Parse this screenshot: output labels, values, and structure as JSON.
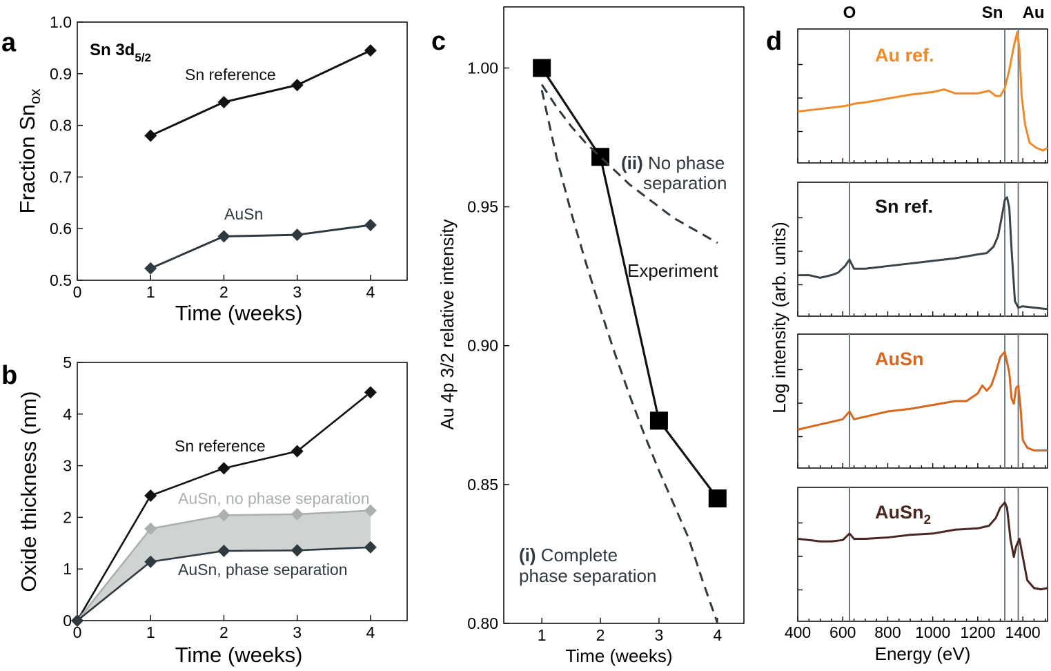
{
  "panel_labels": {
    "a": "a",
    "b": "b",
    "c": "c",
    "d": "d"
  },
  "chart_data": [
    {
      "panel": "a",
      "type": "line",
      "title_main": "Sn 3d",
      "title_sub": "5/2",
      "xlabel": "Time (weeks)",
      "ylabel_main": "Fraction Sn",
      "ylabel_sub": "ox",
      "xlim": [
        0,
        4.5
      ],
      "ylim": [
        0.5,
        1.0
      ],
      "xticks": [
        0,
        1,
        2,
        3,
        4
      ],
      "xtick_labels": [
        "0",
        "1",
        "2",
        "3",
        "4"
      ],
      "yticks": [
        0.5,
        0.6,
        0.7,
        0.8,
        0.9,
        1.0
      ],
      "ytick_labels": [
        "0.5",
        "0.6",
        "0.7",
        "0.8",
        "0.9",
        "1.0"
      ],
      "series": [
        {
          "name": "Sn reference",
          "color": "#111111",
          "x": [
            1,
            2,
            3,
            4
          ],
          "y": [
            0.78,
            0.845,
            0.878,
            0.945
          ]
        },
        {
          "name": "AuSn",
          "color": "#2f3a40",
          "x": [
            1,
            2,
            3,
            4
          ],
          "y": [
            0.523,
            0.585,
            0.588,
            0.607
          ]
        }
      ]
    },
    {
      "panel": "b",
      "type": "line",
      "xlabel": "Time (weeks)",
      "ylabel": "Oxide thickness (nm)",
      "xlim": [
        0,
        4.5
      ],
      "ylim": [
        0,
        5
      ],
      "xticks": [
        0,
        1,
        2,
        3,
        4
      ],
      "xtick_labels": [
        "0",
        "1",
        "2",
        "3",
        "4"
      ],
      "yticks": [
        0,
        1,
        2,
        3,
        4,
        5
      ],
      "ytick_labels": [
        "0",
        "1",
        "2",
        "3",
        "4",
        "5"
      ],
      "band_color": "#cfd4d2",
      "series": [
        {
          "name": "Sn reference",
          "color": "#111111",
          "x": [
            0,
            1,
            2,
            3,
            4
          ],
          "y": [
            0,
            2.42,
            2.95,
            3.28,
            4.42
          ]
        },
        {
          "name": "AuSn, no phase separation",
          "color": "#a9b0ae",
          "x": [
            0,
            1,
            2,
            3,
            4
          ],
          "y": [
            0,
            1.78,
            2.04,
            2.06,
            2.13
          ]
        },
        {
          "name": "AuSn, phase separation",
          "color": "#2f3a40",
          "x": [
            0,
            1,
            2,
            3,
            4
          ],
          "y": [
            0,
            1.14,
            1.35,
            1.36,
            1.42
          ]
        }
      ]
    },
    {
      "panel": "c",
      "type": "line",
      "xlabel": "Time (weeks)",
      "ylabel": "Au 4p 3/2 relative intensity",
      "xlim": [
        0.35,
        4.45
      ],
      "ylim": [
        0.8,
        1.022
      ],
      "xticks": [
        1,
        2,
        3,
        4
      ],
      "xtick_labels": [
        "1",
        "2",
        "3",
        "4"
      ],
      "yticks": [
        0.8,
        0.85,
        0.9,
        0.95,
        1.0
      ],
      "ytick_labels": [
        "0.80",
        "0.85",
        "0.90",
        "0.95",
        "1.00"
      ],
      "series": [
        {
          "name": "Experiment",
          "color": "#111111",
          "x": [
            1,
            2,
            3,
            4
          ],
          "y": [
            1.0,
            0.968,
            0.873,
            0.845
          ]
        },
        {
          "name": "(ii) No phase separation",
          "color": "#2f3a40",
          "dashed": true,
          "x": [
            1,
            1.25,
            1.5,
            1.75,
            2,
            2.25,
            2.5,
            2.75,
            3,
            3.25,
            3.5,
            3.75,
            4
          ],
          "y": [
            0.994,
            0.986,
            0.979,
            0.973,
            0.968,
            0.963,
            0.958,
            0.954,
            0.95,
            0.946,
            0.943,
            0.94,
            0.937
          ]
        },
        {
          "name": "(i) Complete phase separation",
          "color": "#2f3a40",
          "dashed": true,
          "x": [
            1,
            1.25,
            1.5,
            1.75,
            2,
            2.25,
            2.5,
            2.75,
            3,
            3.25,
            3.5,
            3.75,
            4
          ],
          "y": [
            0.992,
            0.968,
            0.948,
            0.93,
            0.913,
            0.897,
            0.882,
            0.868,
            0.855,
            0.843,
            0.831,
            0.815,
            0.8
          ]
        }
      ],
      "annotations": {
        "experiment": "Experiment",
        "ii_tag": "(ii)",
        "ii_line1": " No phase",
        "ii_line2": "separation",
        "i_tag": "(i)",
        "i_line1": " Complete",
        "i_line2": "phase separation"
      }
    },
    {
      "panel": "d",
      "type": "line",
      "xlabel": "Energy (eV)",
      "ylabel": "Log intensity (arb. units)",
      "xlim": [
        400,
        1510
      ],
      "xticks": [
        400,
        600,
        800,
        1000,
        1200,
        1400
      ],
      "xtick_labels": [
        "400",
        "600",
        "800",
        "1000",
        "1200",
        "1400"
      ],
      "reference_lines": [
        {
          "label": "O",
          "x": 630
        },
        {
          "label": "Sn",
          "x": 1320
        },
        {
          "label": "Au",
          "x": 1380
        }
      ],
      "series": [
        {
          "name": "Au ref.",
          "color": "#ef8a2b",
          "x": [
            400,
            450,
            500,
            550,
            600,
            630,
            650,
            700,
            800,
            900,
            1000,
            1050,
            1100,
            1200,
            1250,
            1280,
            1300,
            1320,
            1340,
            1360,
            1375,
            1385,
            1395,
            1410,
            1430,
            1460,
            1490,
            1510
          ],
          "y": [
            0.38,
            0.39,
            0.4,
            0.41,
            0.42,
            0.43,
            0.44,
            0.45,
            0.48,
            0.51,
            0.53,
            0.55,
            0.52,
            0.52,
            0.54,
            0.5,
            0.5,
            0.56,
            0.7,
            0.88,
            0.99,
            0.86,
            0.5,
            0.28,
            0.14,
            0.1,
            0.08,
            0.1
          ]
        },
        {
          "name": "Sn ref.",
          "color": "#3a4448",
          "x": [
            400,
            450,
            500,
            550,
            580,
            610,
            630,
            650,
            700,
            800,
            900,
            1000,
            1100,
            1200,
            1240,
            1270,
            1290,
            1310,
            1320,
            1330,
            1340,
            1350,
            1365,
            1380,
            1400,
            1450,
            1500,
            1510
          ],
          "y": [
            0.3,
            0.3,
            0.28,
            0.3,
            0.32,
            0.37,
            0.42,
            0.35,
            0.35,
            0.37,
            0.39,
            0.41,
            0.43,
            0.46,
            0.47,
            0.52,
            0.6,
            0.78,
            0.88,
            0.9,
            0.82,
            0.5,
            0.1,
            0.05,
            0.06,
            0.05,
            0.04,
            0.04
          ]
        },
        {
          "name": "AuSn",
          "color": "#d9661e",
          "x": [
            400,
            450,
            500,
            550,
            600,
            630,
            650,
            700,
            800,
            900,
            1000,
            1100,
            1150,
            1200,
            1220,
            1240,
            1260,
            1280,
            1300,
            1320,
            1340,
            1350,
            1360,
            1370,
            1380,
            1390,
            1400,
            1420,
            1450,
            1480,
            1510
          ],
          "y": [
            0.28,
            0.3,
            0.32,
            0.34,
            0.36,
            0.42,
            0.36,
            0.38,
            0.42,
            0.44,
            0.47,
            0.5,
            0.5,
            0.56,
            0.62,
            0.58,
            0.62,
            0.72,
            0.84,
            0.88,
            0.72,
            0.52,
            0.48,
            0.6,
            0.62,
            0.45,
            0.2,
            0.14,
            0.12,
            0.12,
            0.12
          ]
        },
        {
          "name": "AuSn",
          "name_sub": "2",
          "color": "#4a2620",
          "x": [
            400,
            450,
            500,
            550,
            600,
            630,
            650,
            700,
            800,
            900,
            1000,
            1100,
            1200,
            1250,
            1280,
            1300,
            1320,
            1330,
            1345,
            1360,
            1370,
            1385,
            1400,
            1420,
            1450,
            1480,
            1510
          ],
          "y": [
            0.62,
            0.61,
            0.6,
            0.6,
            0.61,
            0.66,
            0.62,
            0.62,
            0.63,
            0.65,
            0.66,
            0.69,
            0.7,
            0.72,
            0.78,
            0.86,
            0.9,
            0.86,
            0.62,
            0.48,
            0.56,
            0.62,
            0.48,
            0.3,
            0.24,
            0.23,
            0.24
          ]
        }
      ]
    }
  ]
}
